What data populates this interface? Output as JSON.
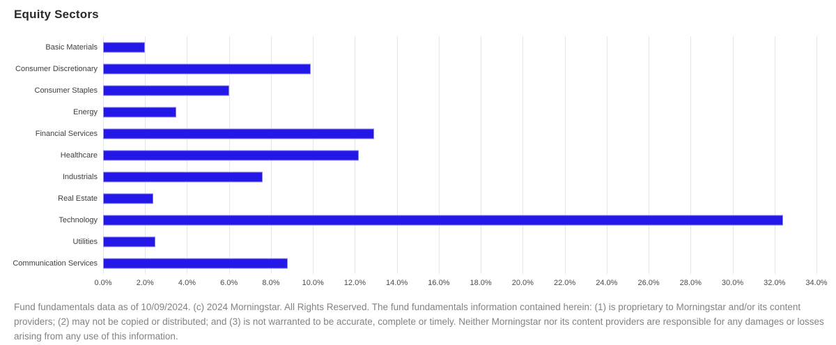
{
  "chart_data": {
    "type": "bar",
    "orientation": "horizontal",
    "title": "Equity Sectors",
    "categories": [
      "Basic Materials",
      "Consumer Discretionary",
      "Consumer Staples",
      "Energy",
      "Financial Services",
      "Healthcare",
      "Industrials",
      "Real Estate",
      "Technology",
      "Utilities",
      "Communication Services"
    ],
    "values": [
      2.0,
      9.9,
      6.0,
      3.5,
      12.9,
      12.2,
      7.6,
      2.4,
      32.4,
      2.5,
      8.8
    ],
    "value_unit": "%",
    "xlabel": "",
    "ylabel": "",
    "xlim": [
      0,
      34
    ],
    "x_ticks": [
      "0.0%",
      "2.0%",
      "4.0%",
      "6.0%",
      "8.0%",
      "10.0%",
      "12.0%",
      "14.0%",
      "16.0%",
      "18.0%",
      "20.0%",
      "22.0%",
      "24.0%",
      "26.0%",
      "28.0%",
      "30.0%",
      "32.0%",
      "34.0%"
    ],
    "grid": "vertical",
    "legend": "none",
    "bar_color": "#2318e8",
    "gridline_color": "#e6e5ee"
  },
  "footer": {
    "disclaimer": "Fund fundamentals data as of 10/09/2024. (c) 2024 Morningstar. All Rights Reserved. The fund fundamentals information contained herein: (1) is proprietary to Morningstar and/or its content providers; (2) may not be copied or distributed; and (3) is not warranted to be accurate, complete or timely. Neither Morningstar nor its content providers are responsible for any damages or losses arising from any use of this information."
  }
}
